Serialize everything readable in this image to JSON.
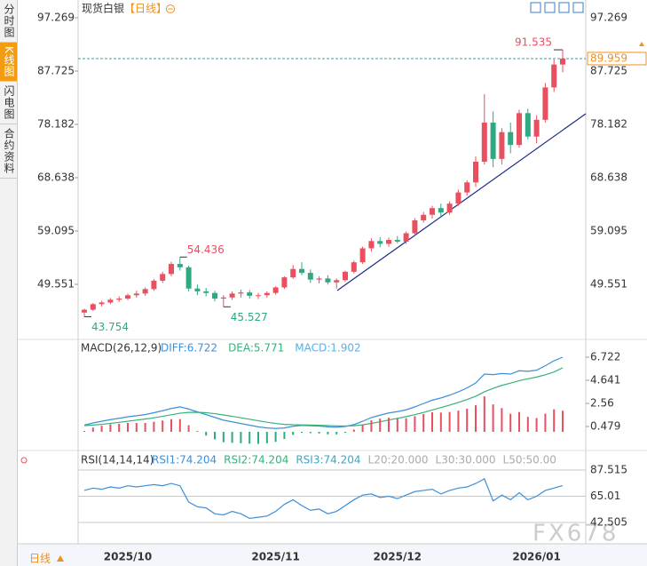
{
  "sidebar": [
    "分时图",
    "K线图",
    "闪电图",
    "合约资料"
  ],
  "bottom_period": "日线",
  "watermark": "FX678",
  "chart_data": [
    {
      "type": "candlestick",
      "title": "现货白银",
      "period_label": "【日线】",
      "categories": [
        null,
        null,
        null,
        null,
        null,
        "2025/10",
        null,
        null,
        null,
        null,
        null,
        null,
        null,
        null,
        null,
        null,
        null,
        null,
        null,
        null,
        null,
        null,
        "2025/11",
        null,
        null,
        null,
        null,
        null,
        null,
        null,
        null,
        null,
        null,
        null,
        null,
        null,
        "2025/12",
        null,
        null,
        null,
        null,
        null,
        null,
        null,
        null,
        null,
        null,
        null,
        null,
        null,
        null,
        null,
        "2026/01",
        null,
        null,
        null
      ],
      "open": [
        44.5,
        45.0,
        46.0,
        46.3,
        46.8,
        47.0,
        47.6,
        47.9,
        48.7,
        50.2,
        51.4,
        53.2,
        52.6,
        48.8,
        48.3,
        48.0,
        47.0,
        47.2,
        47.9,
        48.1,
        47.5,
        47.6,
        48.0,
        49.0,
        50.8,
        52.3,
        51.6,
        50.4,
        50.6,
        49.9,
        50.3,
        51.8,
        53.5,
        56.0,
        57.3,
        56.8,
        57.5,
        57.2,
        58.7,
        61.0,
        62.0,
        63.2,
        62.4,
        64.0,
        66.0,
        67.8,
        71.5,
        78.5,
        72.0,
        76.8,
        74.5,
        80.2,
        76.0,
        79.0,
        84.8,
        88.9
      ],
      "high": [
        45.2,
        46.2,
        46.6,
        47.1,
        47.4,
        47.9,
        48.4,
        49.0,
        50.5,
        51.8,
        53.6,
        54.436,
        52.9,
        49.5,
        48.9,
        48.4,
        47.6,
        48.3,
        48.6,
        48.5,
        48.0,
        48.3,
        49.2,
        51.0,
        53.0,
        53.5,
        52.2,
        51.0,
        51.2,
        50.6,
        52.0,
        53.8,
        56.3,
        57.8,
        58.0,
        57.9,
        58.2,
        59.0,
        61.4,
        62.5,
        63.6,
        64.0,
        64.4,
        66.5,
        68.2,
        72.5,
        83.6,
        80.5,
        77.5,
        78.5,
        80.8,
        81.0,
        79.8,
        85.6,
        89.8,
        91.535
      ],
      "low": [
        43.754,
        44.8,
        45.6,
        46.0,
        46.4,
        46.7,
        47.2,
        47.5,
        48.4,
        49.8,
        51.0,
        52.0,
        48.3,
        47.6,
        47.4,
        46.5,
        45.527,
        46.8,
        47.2,
        47.0,
        46.9,
        47.2,
        47.7,
        48.7,
        50.5,
        51.2,
        49.8,
        49.7,
        49.5,
        48.8,
        50.0,
        51.5,
        53.2,
        55.4,
        56.2,
        56.3,
        56.9,
        56.8,
        58.3,
        60.6,
        61.3,
        61.8,
        62.0,
        63.6,
        65.4,
        67.0,
        71.0,
        70.5,
        71.0,
        73.0,
        74.0,
        75.5,
        74.8,
        78.5,
        84.0,
        87.5
      ],
      "close": [
        45.0,
        46.0,
        46.3,
        46.8,
        47.0,
        47.6,
        47.9,
        48.7,
        50.2,
        51.4,
        53.2,
        52.6,
        48.8,
        48.3,
        48.0,
        47.0,
        47.2,
        47.9,
        48.1,
        47.5,
        47.6,
        48.0,
        49.0,
        50.8,
        52.3,
        51.6,
        50.4,
        50.6,
        49.9,
        50.3,
        51.8,
        53.5,
        56.0,
        57.3,
        56.8,
        57.5,
        57.2,
        58.7,
        61.0,
        62.0,
        63.2,
        62.4,
        64.0,
        66.0,
        67.8,
        71.5,
        78.5,
        72.0,
        76.8,
        74.5,
        80.2,
        76.0,
        79.0,
        84.8,
        88.9,
        89.959
      ],
      "up_color": "#e8505f",
      "down_color": "#2fa982",
      "annotations": [
        91.535,
        54.436,
        43.754,
        45.527
      ],
      "last": 89.959,
      "last_color": "#f0901e",
      "ylim": [
        40.007,
        98.86
      ],
      "yticks": [
        97.269,
        87.725,
        78.182,
        68.638,
        59.095,
        49.551
      ]
    },
    {
      "type": "macd",
      "title": "MACD(26,12,9)",
      "series": [
        {
          "name": "DIFF",
          "label": "DIFF:6.722",
          "color": "#3d8fd8",
          "values": [
            0.6,
            0.8,
            0.95,
            1.1,
            1.22,
            1.35,
            1.45,
            1.55,
            1.72,
            1.9,
            2.1,
            2.25,
            2.05,
            1.8,
            1.55,
            1.3,
            1.05,
            0.9,
            0.75,
            0.6,
            0.45,
            0.35,
            0.3,
            0.35,
            0.5,
            0.58,
            0.55,
            0.52,
            0.45,
            0.42,
            0.48,
            0.65,
            0.95,
            1.28,
            1.5,
            1.7,
            1.82,
            1.98,
            2.25,
            2.55,
            2.85,
            3.05,
            3.3,
            3.6,
            3.95,
            4.4,
            5.2,
            5.15,
            5.25,
            5.2,
            5.5,
            5.45,
            5.55,
            5.95,
            6.4,
            6.722
          ]
        },
        {
          "name": "DEA",
          "label": "DEA:5.771",
          "color": "#35b27a",
          "values": [
            0.56,
            0.608,
            0.676,
            0.761,
            0.853,
            0.952,
            1.052,
            1.151,
            1.265,
            1.392,
            1.534,
            1.677,
            1.752,
            1.762,
            1.72,
            1.636,
            1.519,
            1.395,
            1.266,
            1.133,
            0.995,
            0.866,
            0.753,
            0.672,
            0.638,
            0.626,
            0.611,
            0.593,
            0.564,
            0.535,
            0.524,
            0.549,
            0.629,
            0.759,
            0.907,
            1.066,
            1.217,
            1.37,
            1.546,
            1.747,
            1.968,
            2.184,
            2.407,
            2.646,
            2.907,
            3.206,
            3.605,
            3.914,
            4.181,
            4.385,
            4.608,
            4.776,
            4.931,
            5.135,
            5.388,
            5.771
          ]
        },
        {
          "name": "MACD",
          "label": "MACD:1.902",
          "color": "#5aaee8",
          "bar": true,
          "up_color": "#e8505f",
          "down_color": "#2fa982",
          "values": [
            0.08,
            0.384,
            0.548,
            0.678,
            0.734,
            0.796,
            0.796,
            0.798,
            0.91,
            1.016,
            1.132,
            1.146,
            0.596,
            0.076,
            -0.34,
            -0.672,
            -0.938,
            -0.99,
            -1.032,
            -1.066,
            -1.09,
            -1.032,
            -0.906,
            -0.644,
            -0.276,
            -0.092,
            -0.122,
            -0.146,
            -0.228,
            -0.23,
            -0.088,
            0.202,
            0.642,
            1.042,
            1.186,
            1.268,
            1.206,
            1.22,
            1.408,
            1.606,
            1.764,
            1.732,
            1.786,
            1.908,
            2.086,
            2.388,
            3.19,
            2.472,
            2.138,
            1.63,
            1.784,
            1.348,
            1.238,
            1.63,
            2.024,
            1.902
          ]
        }
      ],
      "ylim": [
        -1.522,
        8.083
      ],
      "yticks": [
        6.722,
        4.641,
        2.56,
        0.479
      ]
    },
    {
      "type": "rsi",
      "title": "RSI(14,14,14)",
      "series": [
        {
          "name": "RSI1",
          "label": "RSI1:74.204",
          "color": "#3d8fd8",
          "values": [
            70,
            72,
            71,
            73,
            72,
            74,
            73,
            74,
            75,
            74,
            76,
            74,
            60,
            56,
            55,
            50,
            49,
            52,
            50,
            46,
            47,
            48,
            52,
            58,
            62,
            57,
            53,
            54,
            50,
            52,
            57,
            62,
            66,
            67,
            64,
            65,
            63,
            66,
            69,
            70,
            71,
            67,
            70,
            72,
            73,
            76,
            80,
            61,
            66,
            62,
            68,
            62,
            65,
            70,
            72,
            74.204
          ]
        }
      ],
      "legend": [
        {
          "text": "RSI2:74.204",
          "color": "#35b27a"
        },
        {
          "text": "RSI3:74.204",
          "color": "#3aa6c9"
        },
        {
          "text": "L20:20.000",
          "color": "#aaaaaa"
        },
        {
          "text": "L30:30.000",
          "color": "#aaaaaa"
        },
        {
          "text": "L50:50.00",
          "color": "#aaaaaa"
        }
      ],
      "grid": true,
      "ylim": [
        27.25,
        100.48
      ],
      "yticks": [
        87.515,
        65.01,
        42.505
      ]
    }
  ]
}
